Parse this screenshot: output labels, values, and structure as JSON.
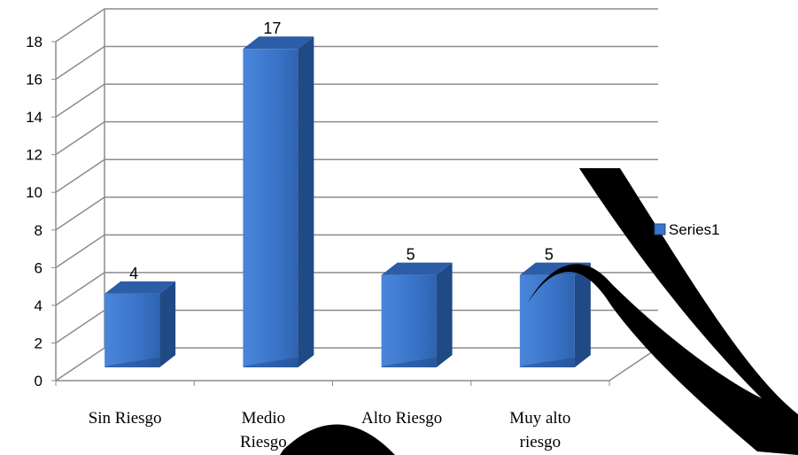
{
  "chart_data": {
    "type": "bar",
    "style": "3d-column",
    "categories": [
      [
        "Sin Riesgo"
      ],
      [
        "Medio",
        "Riesgo"
      ],
      [
        "Alto Riesgo"
      ],
      [
        "Muy alto",
        "riesgo"
      ]
    ],
    "series": [
      {
        "name": "Series1",
        "values": [
          4,
          17,
          5,
          5
        ],
        "color": "#3a74c8"
      }
    ],
    "data_labels": [
      "4",
      "17",
      "5",
      "5"
    ],
    "yticks": [
      "0",
      "2",
      "4",
      "6",
      "8",
      "10",
      "12",
      "14",
      "16",
      "18"
    ],
    "ylim": [
      0,
      18
    ],
    "grid": true,
    "legend": "right",
    "watermark": "hand-drawn-curve",
    "colors": {
      "bar_front": "#3a74c8",
      "bar_side": "#1f4a86",
      "bar_top": "#2c5da6",
      "grid": "#8c8c8c",
      "watermark": "#000000"
    }
  }
}
